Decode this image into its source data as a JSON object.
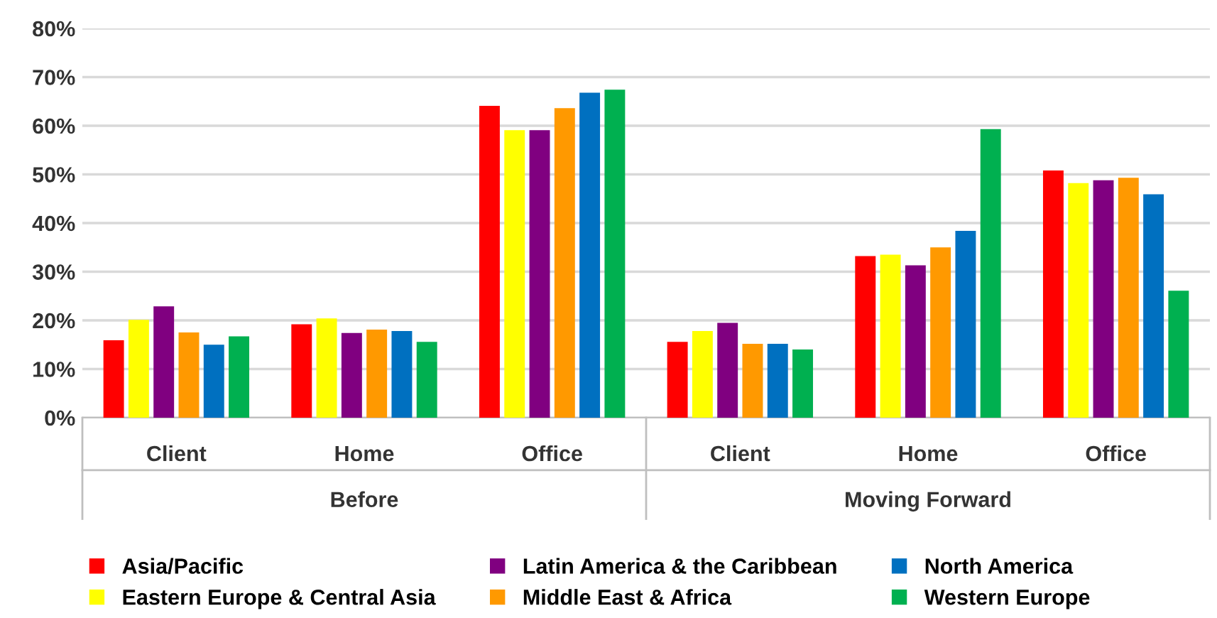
{
  "chart_data": {
    "type": "bar",
    "categories": [
      "Client",
      "Home",
      "Office",
      "Client",
      "Home",
      "Office"
    ],
    "series": [
      {
        "name": "Asia/Pacific",
        "color": "#ff0000",
        "values": [
          15.9,
          19.2,
          64.1,
          15.6,
          33.2,
          50.8
        ]
      },
      {
        "name": "Eastern Europe & Central Asia",
        "color": "#ffff00",
        "values": [
          20.1,
          20.4,
          59.1,
          17.8,
          33.5,
          48.2
        ]
      },
      {
        "name": "Latin America & the Caribbean",
        "color": "#800080",
        "values": [
          22.9,
          17.4,
          59.1,
          19.5,
          31.3,
          48.8
        ]
      },
      {
        "name": "Middle East & Africa",
        "color": "#ff9900",
        "values": [
          17.5,
          18.1,
          63.6,
          15.2,
          35.0,
          49.3
        ]
      },
      {
        "name": "North America",
        "color": "#0070c0",
        "values": [
          15.0,
          17.8,
          66.8,
          15.2,
          38.4,
          45.9
        ]
      },
      {
        "name": "Western Europe",
        "color": "#00b050",
        "values": [
          16.7,
          15.6,
          67.4,
          14.0,
          59.3,
          26.1
        ]
      }
    ],
    "annotations": [
      "Before",
      "Moving Forward"
    ],
    "ylim": [
      0,
      80
    ],
    "yticks": [
      {
        "value": 0,
        "label": "0%"
      },
      {
        "value": 10,
        "label": "10%"
      },
      {
        "value": 20,
        "label": "20%"
      },
      {
        "value": 30,
        "label": "30%"
      },
      {
        "value": 40,
        "label": "40%"
      },
      {
        "value": 50,
        "label": "50%"
      },
      {
        "value": 60,
        "label": "60%"
      },
      {
        "value": 70,
        "label": "70%"
      },
      {
        "value": 80,
        "label": "80%"
      }
    ],
    "grid": "y",
    "legend": "bottom"
  }
}
